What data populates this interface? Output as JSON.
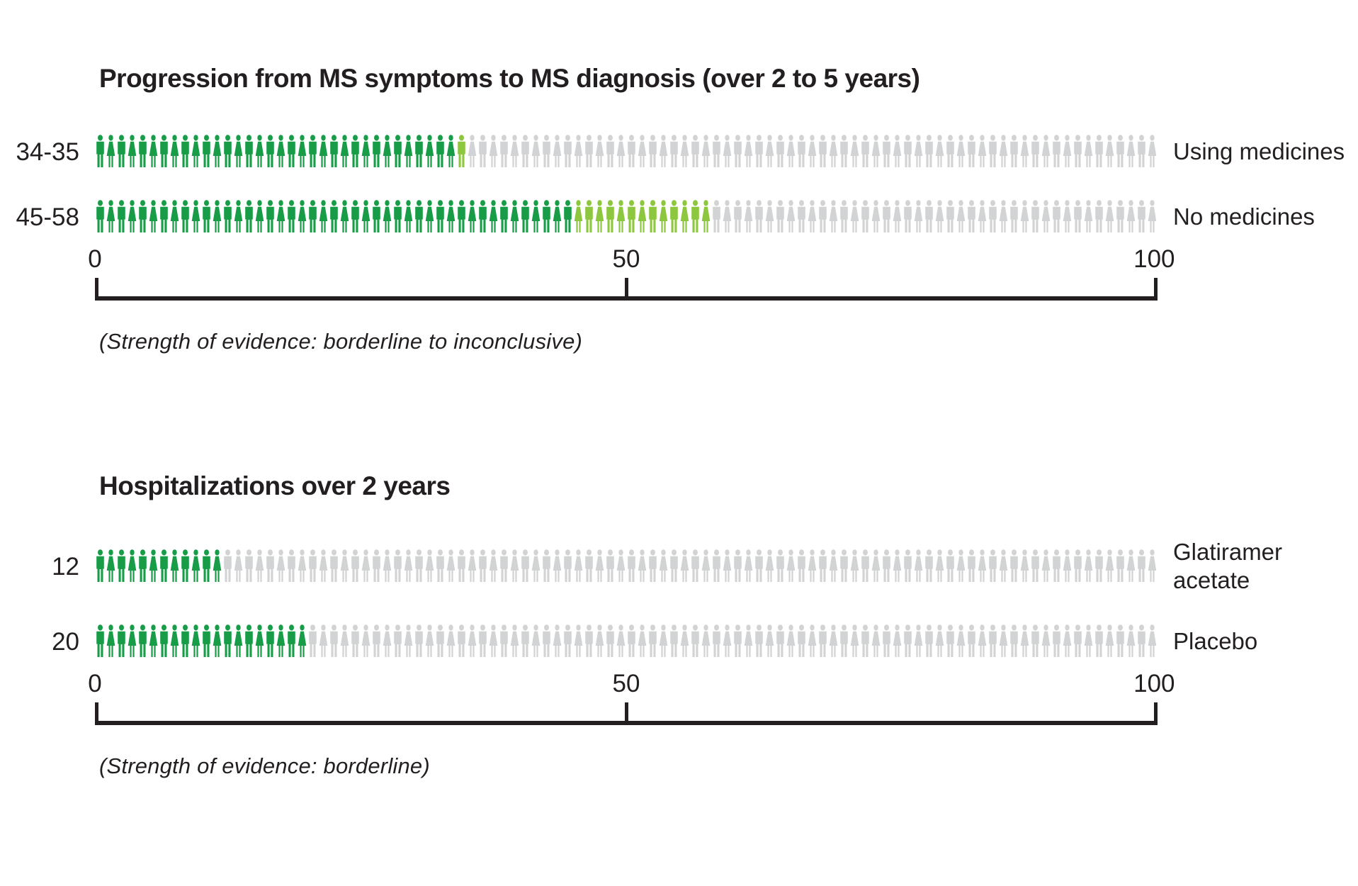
{
  "colors": {
    "filled": "#189c47",
    "uncertain": "#8dc63f",
    "empty": "#d2d3d4",
    "text": "#231f20"
  },
  "icon_names": [
    "man-person-icon",
    "woman-person-icon"
  ],
  "chart_data": [
    {
      "type": "pictograph-bar",
      "title": "Progression from MS symptoms to MS diagnosis (over 2 to 5 years)",
      "unit_total": 100,
      "x_ticks": [
        "0",
        "50",
        "100"
      ],
      "xlim": [
        0,
        100
      ],
      "rows": [
        {
          "label": "34-35",
          "series": "Using medicines",
          "value_min": 34,
          "value_max": 35,
          "total": 100
        },
        {
          "label": "45-58",
          "series": "No medicines",
          "value_min": 45,
          "value_max": 58,
          "total": 100
        }
      ],
      "note": "(Strength of evidence: borderline to inconclusive)"
    },
    {
      "type": "pictograph-bar",
      "title": "Hospitalizations over 2 years",
      "unit_total": 100,
      "x_ticks": [
        "0",
        "50",
        "100"
      ],
      "xlim": [
        0,
        100
      ],
      "rows": [
        {
          "label": "12",
          "series": "Glatiramer acetate",
          "value_min": 12,
          "value_max": 12,
          "total": 100
        },
        {
          "label": "20",
          "series": "Placebo",
          "value_min": 20,
          "value_max": 20,
          "total": 100
        }
      ],
      "note": "(Strength of evidence: borderline)"
    }
  ]
}
